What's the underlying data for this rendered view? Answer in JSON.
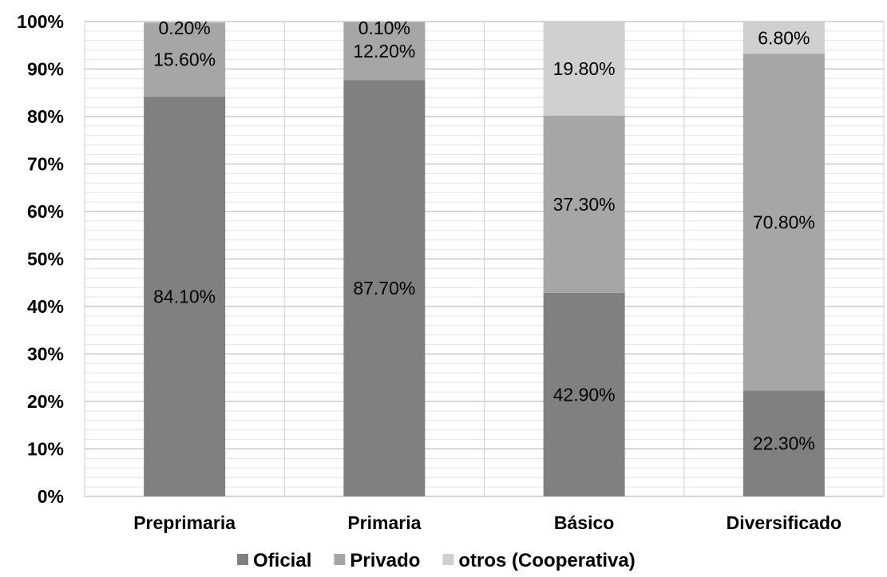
{
  "chart_data": {
    "type": "bar",
    "stacked": true,
    "percent_stacked": true,
    "categories": [
      "Preprimaria",
      "Primaria",
      "Básico",
      "Diversificado"
    ],
    "series": [
      {
        "name": "Oficial",
        "values": [
          84.1,
          87.7,
          42.9,
          22.3
        ],
        "labels": [
          "84.10%",
          "87.70%",
          "42.90%",
          "22.30%"
        ],
        "color": "#808080"
      },
      {
        "name": "Privado",
        "values": [
          15.6,
          12.2,
          37.3,
          70.8
        ],
        "labels": [
          "15.60%",
          "12.20%",
          "37.30%",
          "70.80%"
        ],
        "color": "#a6a6a6"
      },
      {
        "name": "otros (Cooperativa)",
        "values": [
          0.2,
          0.1,
          19.8,
          6.8
        ],
        "labels": [
          "0.20%",
          "0.10%",
          "19.80%",
          "6.80%"
        ],
        "color": "#d0d0d0"
      }
    ],
    "y_ticks": [
      "0%",
      "10%",
      "20%",
      "30%",
      "40%",
      "50%",
      "60%",
      "70%",
      "80%",
      "90%",
      "100%"
    ],
    "ylim": [
      0,
      100
    ],
    "grid": true,
    "legend_position": "bottom"
  }
}
